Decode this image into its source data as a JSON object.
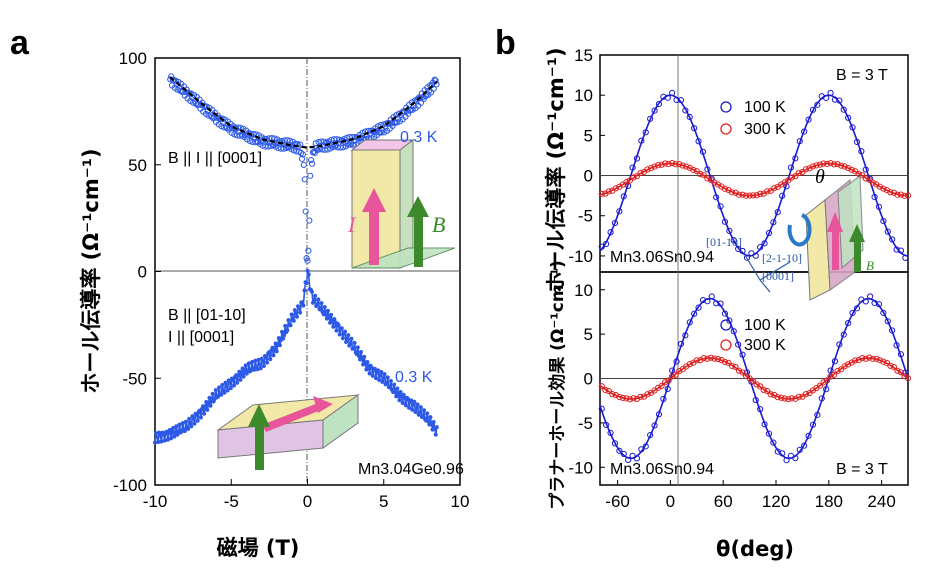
{
  "chart_data": [
    {
      "panel": "a",
      "type": "scatter",
      "xlabel": "磁場 (T)",
      "ylabel": "ホール伝導率 (Ω⁻¹cm⁻¹)",
      "xlim": [
        -10,
        10
      ],
      "ylim": [
        -100,
        100
      ],
      "xticks": [
        "-10",
        "-5",
        "0",
        "5",
        "10"
      ],
      "yticks": [
        "100",
        "50",
        "0",
        "-50",
        "-100"
      ],
      "series": [
        {
          "name": "B || I || [0001]",
          "marker": "circle-open",
          "color": "#2c59e6",
          "x": [
            -9,
            -8,
            -7,
            -6,
            -5,
            -4,
            -3,
            -2,
            -1,
            -0.5,
            -0.2,
            -0.05,
            0.05,
            0.2,
            0.5,
            1,
            2,
            3,
            4,
            5,
            6,
            7,
            8,
            8.5
          ],
          "y": [
            90,
            84,
            78,
            72,
            67,
            64,
            61,
            60,
            59,
            58,
            50,
            5,
            5,
            50,
            58,
            59,
            60,
            61,
            64,
            67,
            72,
            78,
            85,
            90
          ]
        },
        {
          "name": "B || I || [0001] fit",
          "line": "dashed",
          "color": "#000000",
          "x": [
            -9,
            -7,
            -5,
            -3,
            -1,
            0,
            1,
            3,
            5,
            7,
            8.5
          ],
          "y": [
            91,
            79,
            68,
            62,
            59,
            58,
            59,
            62,
            68,
            79,
            89
          ]
        },
        {
          "name": "B || [01-10], I || [0001]",
          "marker": "dot-line",
          "color": "#2c59e6",
          "x": [
            -10,
            -9,
            -8,
            -7,
            -6,
            -5,
            -4,
            -3,
            -2,
            -1,
            -0.3,
            0,
            0.3,
            1,
            2,
            3,
            4,
            5,
            6,
            7,
            8,
            8.5
          ],
          "y": [
            -78,
            -76,
            -73,
            -66,
            -58,
            -52,
            -46,
            -43,
            -35,
            -22,
            -15,
            0,
            -12,
            -18,
            -26,
            -35,
            -45,
            -50,
            -58,
            -63,
            -70,
            -75
          ]
        }
      ],
      "annotations": {
        "label_parallel": "B || I || [0001]",
        "temp_top": "0.3 K",
        "label_perp_line1": "B || [01-10]",
        "label_perp_line2": "I || [0001]",
        "temp_bottom": "0.3 K",
        "material": "Mn3.04Ge0.96",
        "inset_I": "I",
        "inset_B": "B"
      }
    },
    {
      "panel": "b-top",
      "type": "scatter",
      "xlabel": "θ(deg)",
      "ylabel": "ホール伝導率 (Ω⁻¹cm⁻¹)",
      "xlim": [
        -80,
        270
      ],
      "ylim": [
        -12,
        15
      ],
      "xticks": [
        "-60",
        "0",
        "60",
        "120",
        "180",
        "240"
      ],
      "yticks": [
        "15",
        "10",
        "5",
        "0",
        "-5",
        "-10"
      ],
      "series": [
        {
          "name": "100 K",
          "marker": "circle-open",
          "color": "#1a1ad0",
          "amplitude": 10,
          "period_deg": 180,
          "phase_deg": 0
        },
        {
          "name": "300 K",
          "marker": "circle-open",
          "color": "#e02020",
          "amplitude": 2,
          "offset": -0.5,
          "period_deg": 180,
          "phase_deg": 0
        }
      ],
      "annotations": {
        "field": "B = 3 T",
        "material": "Mn3.06Sn0.94",
        "theta": "θ",
        "dir1": "[01-10]",
        "dir2": "[2-1-10]",
        "dir3": "[0001]",
        "inset_B": "B"
      }
    },
    {
      "panel": "b-bottom",
      "type": "scatter",
      "xlabel": "θ(deg)",
      "ylabel": "プラナーホール効果 (Ω⁻¹cm⁻¹)",
      "xlim": [
        -80,
        270
      ],
      "ylim": [
        -12,
        12
      ],
      "xticks": [
        "-60",
        "0",
        "60",
        "120",
        "180",
        "240"
      ],
      "yticks": [
        "10",
        "5",
        "0",
        "-5",
        "-10"
      ],
      "series": [
        {
          "name": "100 K",
          "marker": "circle-open",
          "color": "#1a1ad0",
          "amplitude": 9,
          "period_deg": 180,
          "phase_deg": 45
        },
        {
          "name": "300 K",
          "marker": "circle-open",
          "color": "#e02020",
          "amplitude": 2.3,
          "period_deg": 180,
          "phase_deg": 45
        }
      ],
      "annotations": {
        "field": "B = 3 T",
        "material": "Mn3.06Sn0.94"
      }
    }
  ],
  "labels": {
    "panel_a": "a",
    "panel_b": "b",
    "ylabel_a": "ホール伝導率 (Ω⁻¹cm⁻¹)",
    "xlabel_a": "磁場 (T)",
    "ylabel_b_top": "ホール伝導率 (Ω⁻¹cm⁻¹)",
    "ylabel_b_bottom": "プラナーホール効果 (Ω⁻¹cm⁻¹)",
    "xlabel_b": "θ(deg)",
    "legend_100": "100 K",
    "legend_300": "300 K"
  }
}
